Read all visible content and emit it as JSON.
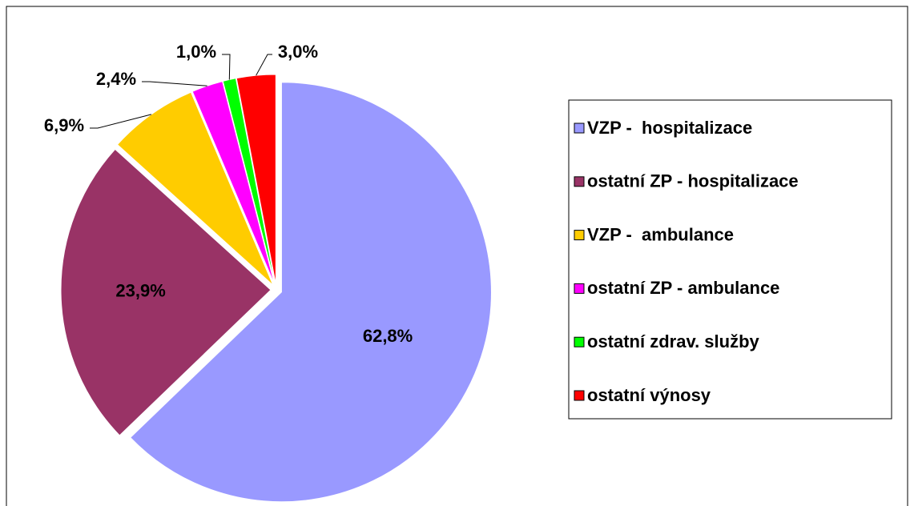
{
  "chart_data": {
    "type": "pie",
    "categories": [
      "VZP -  hospitalizace",
      "ostatní ZP - hospitalizace",
      "VZP -  ambulance",
      "ostatní ZP - ambulance",
      "ostatní zdrav. služby",
      "ostatní výnosy"
    ],
    "values": [
      62.8,
      23.9,
      6.9,
      2.4,
      1.0,
      3.0
    ],
    "value_labels": [
      "62,8%",
      "23,9%",
      "6,9%",
      "2,4%",
      "1,0%",
      "3,0%"
    ],
    "colors": [
      "#9999ff",
      "#993366",
      "#ffcc00",
      "#ff00ff",
      "#00ff00",
      "#ff0000"
    ],
    "legend": "right"
  }
}
